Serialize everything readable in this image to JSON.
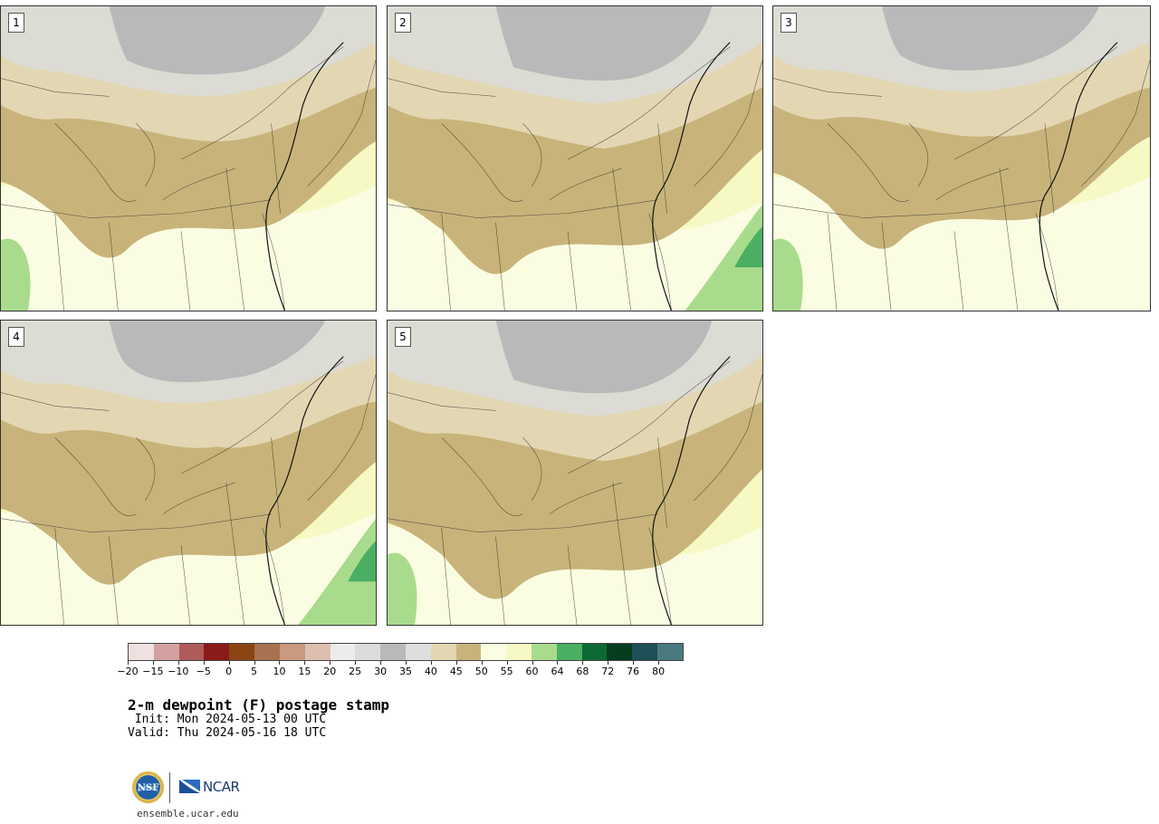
{
  "panels": [
    {
      "label": "1"
    },
    {
      "label": "2"
    },
    {
      "label": "3"
    },
    {
      "label": "4"
    },
    {
      "label": "5"
    }
  ],
  "colorbar": {
    "colors": [
      "#f0e1e1",
      "#d4a1a1",
      "#b05a5a",
      "#8b1a1a",
      "#8b4513",
      "#a8714f",
      "#c99a80",
      "#ddbfb0",
      "#ececec",
      "#dcdcdc",
      "#b9b9b9",
      "#dedede",
      "#e3d7b3",
      "#c8b47a",
      "#fbfde2",
      "#f6f9c4",
      "#a8dc8c",
      "#4aaf62",
      "#0e6a35",
      "#063d1f",
      "#1f4f57",
      "#4a7a80"
    ],
    "tick_labels": [
      "−20",
      "−15",
      "−10",
      "−5",
      "0",
      "5",
      "10",
      "15",
      "20",
      "25",
      "30",
      "35",
      "40",
      "45",
      "50",
      "55",
      "60",
      "64",
      "68",
      "72",
      "76",
      "80"
    ]
  },
  "palette": {
    "gray_high": "#b9b9b9",
    "gray_light": "#dcdcd4",
    "tan_light": "#e3d7b3",
    "tan": "#c8b47a",
    "cream": "#fbfde2",
    "yellow": "#f6f9c4",
    "green_light": "#a8dc8c",
    "green": "#4aaf62"
  },
  "title": "2-m dewpoint (F) postage stamp",
  "init": " Init: Mon 2024-05-13 00 UTC",
  "valid": "Valid: Thu 2024-05-16 18 UTC",
  "footer": {
    "nsf_logo_text": "NSF",
    "ncar_logo_text": "NCAR",
    "url": "ensemble.ucar.edu"
  }
}
